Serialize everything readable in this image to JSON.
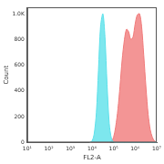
{
  "chart_data": {
    "type": "area",
    "x_label": "FL2-A",
    "y_label": "Count",
    "log": "x",
    "grid": false,
    "x": [
      8000,
      10000,
      12500,
      16000,
      20000,
      25000,
      32000,
      40000,
      50000,
      63000,
      80000,
      100000,
      125000,
      160000,
      200000,
      250000,
      320000,
      400000,
      500000,
      630000,
      800000,
      1000000,
      1250000,
      1600000,
      2000000,
      2500000,
      3200000,
      4000000,
      5000000,
      6300000,
      8000000,
      10000000
    ],
    "series": [
      {
        "color": "#5ce1ea",
        "values": [
          0,
          10,
          60,
          230,
          560,
          900,
          1000,
          820,
          450,
          150,
          30,
          5,
          0,
          0,
          0,
          0,
          0,
          0,
          0,
          0,
          0,
          0,
          0,
          0,
          0,
          0,
          0,
          0,
          0,
          0,
          0,
          0
        ]
      },
      {
        "color": "#f07a7a",
        "values": [
          0,
          0,
          0,
          0,
          0,
          0,
          0,
          0,
          0,
          0,
          10,
          40,
          120,
          260,
          440,
          640,
          800,
          880,
          860,
          800,
          820,
          920,
          990,
          1000,
          900,
          680,
          420,
          220,
          100,
          40,
          10,
          0
        ]
      }
    ],
    "xlim": [
      10,
      10000000
    ],
    "xticks": [
      {
        "value": 10,
        "label": "10¹"
      },
      {
        "value": 100,
        "label": "10²"
      },
      {
        "value": 1000,
        "label": "10³"
      },
      {
        "value": 10000,
        "label": "10⁴"
      },
      {
        "value": 100000,
        "label": "10⁵"
      },
      {
        "value": 1000000,
        "label": "10⁶"
      },
      {
        "value": 10000000,
        "label": "10⁷"
      }
    ],
    "ylim": [
      0,
      1050
    ],
    "yticks": [
      0,
      200,
      400,
      600,
      800,
      {
        "value": 1000,
        "label": "1.0K"
      }
    ]
  }
}
